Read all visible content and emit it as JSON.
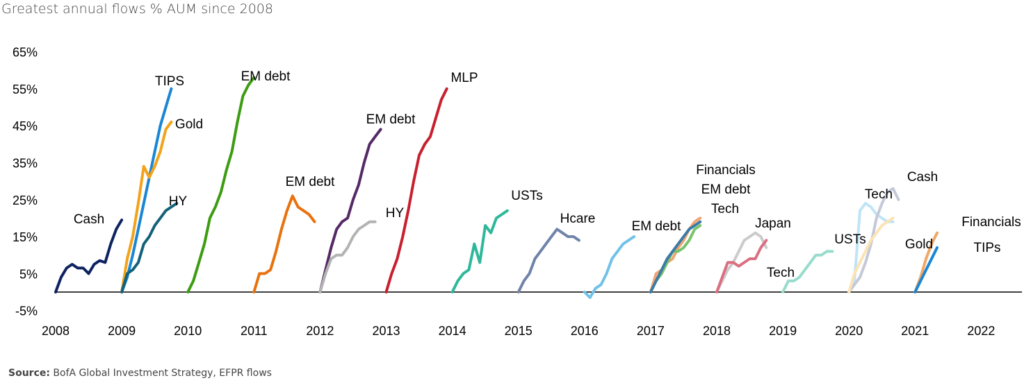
{
  "chart_data": {
    "type": "line",
    "title": "Greatest annual flows % AUM since 2008",
    "xlabel": "",
    "ylabel": "",
    "x_ticks": [
      "2008",
      "2009",
      "2010",
      "2011",
      "2012",
      "2013",
      "2014",
      "2015",
      "2016",
      "2017",
      "2018",
      "2019",
      "2020",
      "2021",
      "2022"
    ],
    "y_ticks": [
      "65%",
      "55%",
      "45%",
      "35%",
      "25%",
      "15%",
      "5%",
      "-5%"
    ],
    "xlim": [
      2008,
      2022
    ],
    "ylim": [
      -5,
      65
    ],
    "baseline": 0,
    "series": [
      {
        "name": "Cash",
        "year": 2008,
        "color": "#0d2361",
        "values": [
          0,
          4,
          6.5,
          7.5,
          6.5,
          6.5,
          5,
          7.5,
          8.5,
          8,
          13,
          17,
          19.5
        ]
      },
      {
        "name": "TIPS",
        "year": 2009,
        "color": "#1a86d4",
        "values": [
          0,
          4,
          10,
          17,
          24,
          31,
          38,
          45,
          50,
          55
        ]
      },
      {
        "name": "Gold",
        "year": 2009,
        "color": "#f2a31b",
        "values": [
          0,
          9,
          15,
          24,
          34,
          31,
          34,
          38,
          44,
          46
        ]
      },
      {
        "name": "HY",
        "year": 2009,
        "color": "#13617a",
        "values": [
          0,
          5,
          6,
          8,
          13,
          15,
          18,
          20,
          22,
          23,
          24
        ]
      },
      {
        "name": "EM debt",
        "year": 2010,
        "color": "#3d9c12",
        "values": [
          0,
          3,
          8,
          13,
          20,
          23,
          27,
          33,
          38,
          46,
          53,
          56,
          58
        ]
      },
      {
        "name": "EM debt",
        "year": 2011,
        "color": "#e8720d",
        "values": [
          0,
          5,
          5,
          6,
          11,
          17,
          22,
          26,
          23,
          22,
          21,
          19
        ]
      },
      {
        "name": "EM debt",
        "year": 2012,
        "color": "#552a66",
        "values": [
          0,
          6,
          12,
          17,
          19,
          20,
          25,
          29,
          35,
          40,
          42,
          44
        ]
      },
      {
        "name": "HY",
        "year": 2012,
        "color": "#b3b3b3",
        "values": [
          0,
          5,
          9,
          10,
          10,
          12,
          15,
          17,
          18,
          19,
          19
        ]
      },
      {
        "name": "MLP",
        "year": 2013,
        "color": "#c8202e",
        "values": [
          0,
          5,
          9,
          15,
          22,
          30,
          37,
          40,
          42,
          47,
          52,
          55
        ]
      },
      {
        "name": "USTs",
        "year": 2014,
        "color": "#2eb89a",
        "values": [
          0,
          3,
          5,
          6,
          13,
          8,
          18,
          16,
          20,
          21,
          22
        ]
      },
      {
        "name": "Hcare",
        "year": 2015,
        "color": "#7083a9",
        "values": [
          0,
          3,
          5,
          9,
          11,
          13,
          15,
          17,
          16,
          15,
          15,
          14
        ]
      },
      {
        "name": "EM debt",
        "year": 2016,
        "color": "#72c1e8",
        "values": [
          0,
          -1.5,
          1,
          2,
          5,
          9,
          11,
          13,
          14,
          15
        ]
      },
      {
        "name": "Financials",
        "year": 2017,
        "color": "#f2a371",
        "values": [
          0,
          5,
          6,
          8,
          9,
          12,
          14,
          17,
          19,
          20
        ]
      },
      {
        "name": "EM debt",
        "year": 2017,
        "color": "#78c46a",
        "values": [
          0,
          3,
          5,
          8,
          11,
          11,
          12,
          14,
          17,
          18
        ]
      },
      {
        "name": "Tech",
        "year": 2017,
        "color": "#3b7ba6",
        "values": [
          0,
          3,
          6,
          9,
          11,
          13,
          15,
          17,
          18,
          19
        ]
      },
      {
        "name": "Japan",
        "year": 2018,
        "color": "#cbcbcb",
        "values": [
          0,
          3,
          6,
          8,
          11,
          14,
          15,
          16,
          15,
          12
        ]
      },
      {
        "name": "Tech",
        "year": 2018,
        "color": "#da6f82",
        "values": [
          0,
          4,
          8,
          8,
          7,
          8,
          9,
          9,
          12,
          14
        ]
      },
      {
        "name": "USTs",
        "year": 2019,
        "color": "#97dccd",
        "values": [
          0,
          3,
          3,
          4,
          6,
          8,
          10,
          10,
          11,
          11
        ]
      },
      {
        "name": "Tech",
        "year": 2020,
        "color": "#bfe4f5",
        "values": [
          0,
          3,
          22,
          24,
          23,
          21,
          20,
          19,
          19
        ]
      },
      {
        "name": "Cash",
        "year": 2020,
        "color": "#c5c8d8",
        "values": [
          0,
          2,
          4,
          8,
          13,
          20,
          24,
          27,
          28,
          25
        ]
      },
      {
        "name": "Tech",
        "year": 2020,
        "color": "#fbe3b4",
        "values": [
          0,
          5,
          8,
          11,
          14,
          16,
          18,
          19,
          20
        ]
      },
      {
        "name": "Gold",
        "year": 2021,
        "color": "#f0a866",
        "values": [
          0,
          4,
          9,
          13,
          16
        ]
      },
      {
        "name": "Financials",
        "year": 2021,
        "color": "#1a86d4",
        "values": [
          0,
          3,
          6,
          9,
          12
        ]
      }
    ],
    "annotations": [
      "Cash",
      "TIPS",
      "Gold",
      "HY",
      "EM debt",
      "EM debt",
      "EM debt",
      "HY",
      "MLP",
      "USTs",
      "Hcare",
      "EM debt",
      "Financials",
      "EM debt",
      "Tech",
      "Japan",
      "Tech",
      "USTs",
      "Tech",
      "Cash",
      "Gold",
      "Financials",
      "TIPs"
    ]
  },
  "source": {
    "label": "Source:",
    "text": "BofA Global Investment Strategy, EFPR flows"
  }
}
